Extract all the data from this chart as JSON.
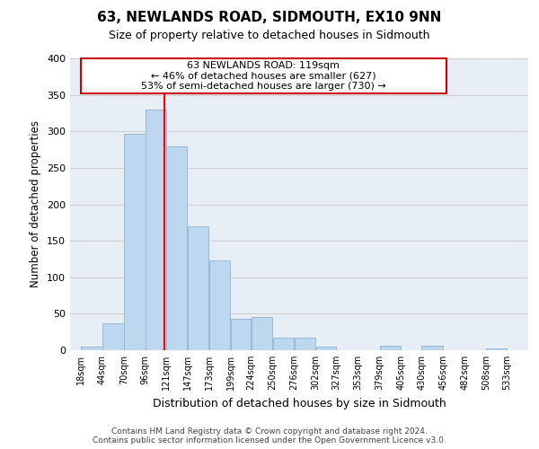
{
  "title": "63, NEWLANDS ROAD, SIDMOUTH, EX10 9NN",
  "subtitle": "Size of property relative to detached houses in Sidmouth",
  "xlabel": "Distribution of detached houses by size in Sidmouth",
  "ylabel": "Number of detached properties",
  "bar_left_edges": [
    18,
    44,
    70,
    96,
    121,
    147,
    173,
    199,
    224,
    250,
    276,
    302,
    327,
    353,
    379,
    405,
    430,
    456,
    482,
    508
  ],
  "bar_heights": [
    5,
    37,
    297,
    330,
    280,
    170,
    123,
    43,
    46,
    17,
    17,
    5,
    0,
    0,
    6,
    0,
    6,
    0,
    0,
    2
  ],
  "bar_widths": [
    26,
    26,
    26,
    25,
    26,
    26,
    26,
    25,
    26,
    26,
    26,
    25,
    26,
    26,
    26,
    25,
    26,
    26,
    26,
    25
  ],
  "bar_color": "#bdd7ee",
  "bar_edge_color": "#9ab8d0",
  "property_line_x": 119,
  "property_line_color": "red",
  "annot_line1": "63 NEWLANDS ROAD: 119sqm",
  "annot_line2": "← 46% of detached houses are smaller (627)",
  "annot_line3": "53% of semi-detached houses are larger (730) →",
  "tick_labels": [
    "18sqm",
    "44sqm",
    "70sqm",
    "96sqm",
    "121sqm",
    "147sqm",
    "173sqm",
    "199sqm",
    "224sqm",
    "250sqm",
    "276sqm",
    "302sqm",
    "327sqm",
    "353sqm",
    "379sqm",
    "405sqm",
    "430sqm",
    "456sqm",
    "482sqm",
    "508sqm",
    "533sqm"
  ],
  "tick_positions": [
    18,
    44,
    70,
    96,
    121,
    147,
    173,
    199,
    224,
    250,
    276,
    302,
    327,
    353,
    379,
    405,
    430,
    456,
    482,
    508,
    533
  ],
  "ylim": [
    0,
    400
  ],
  "xlim": [
    5,
    559
  ],
  "yticks": [
    0,
    50,
    100,
    150,
    200,
    250,
    300,
    350,
    400
  ],
  "footer_line1": "Contains HM Land Registry data © Crown copyright and database right 2024.",
  "footer_line2": "Contains public sector information licensed under the Open Government Licence v3.0.",
  "grid_color": "#d0d0d0",
  "background_color": "#e8eef5"
}
